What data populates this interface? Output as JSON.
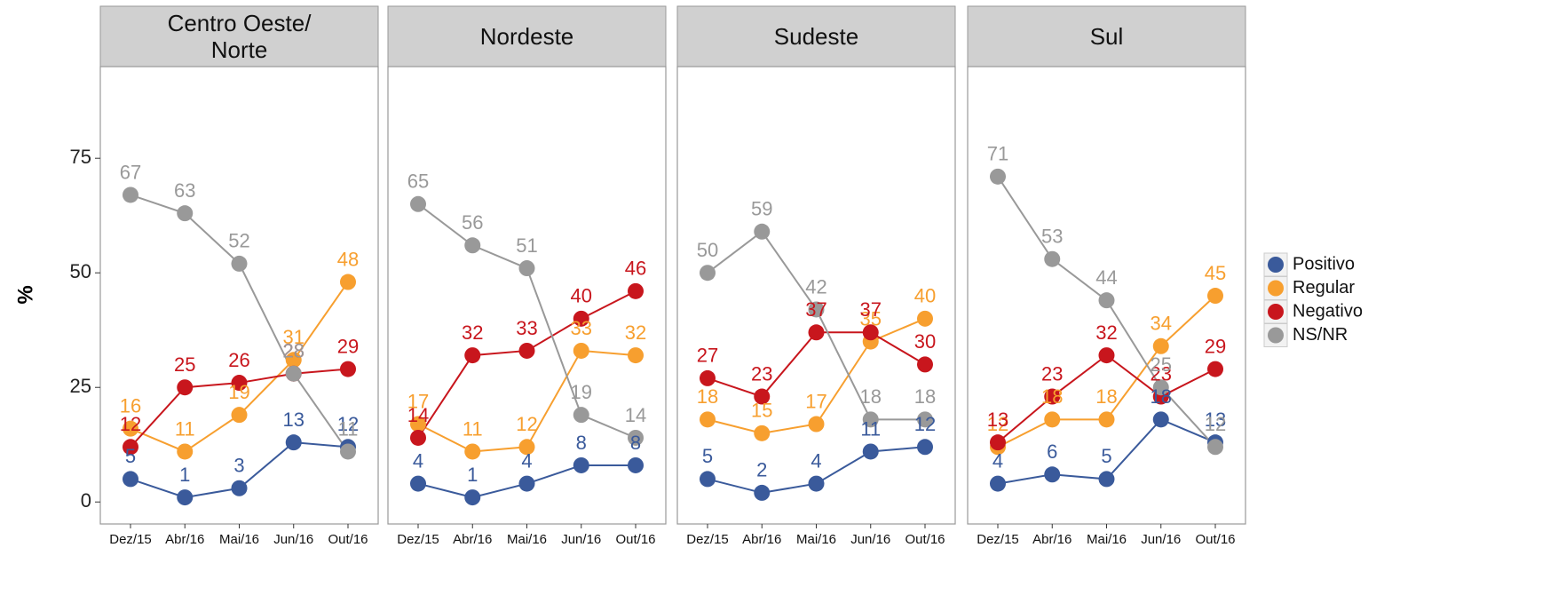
{
  "chart_data": [
    {
      "type": "line",
      "title": "Centro Oeste/\nNorte",
      "y_label": "%",
      "categories": [
        "Dez/15",
        "Abr/16",
        "Mai/16",
        "Jun/16",
        "Out/16"
      ],
      "ylim": [
        -4.8,
        95
      ],
      "yticks": [
        0,
        25,
        50,
        75
      ],
      "series": [
        {
          "name": "Positivo",
          "color": "#3a5a9b",
          "values": [
            5,
            1,
            3,
            13,
            12
          ]
        },
        {
          "name": "Regular",
          "color": "#f79f2f",
          "values": [
            16,
            11,
            19,
            31,
            48
          ]
        },
        {
          "name": "Negativo",
          "color": "#c8161d",
          "values": [
            12,
            25,
            26,
            28,
            29
          ]
        },
        {
          "name": "NS/NR",
          "color": "#999999",
          "values": [
            67,
            63,
            52,
            28,
            11
          ]
        }
      ]
    },
    {
      "type": "line",
      "title": "Nordeste",
      "categories": [
        "Dez/15",
        "Abr/16",
        "Mai/16",
        "Jun/16",
        "Out/16"
      ],
      "ylim": [
        -4.8,
        95
      ],
      "yticks": [
        0,
        25,
        50,
        75
      ],
      "series": [
        {
          "name": "Positivo",
          "color": "#3a5a9b",
          "values": [
            4,
            1,
            4,
            8,
            8
          ]
        },
        {
          "name": "Regular",
          "color": "#f79f2f",
          "values": [
            17,
            11,
            12,
            33,
            32
          ]
        },
        {
          "name": "Negativo",
          "color": "#c8161d",
          "values": [
            14,
            32,
            33,
            40,
            46
          ]
        },
        {
          "name": "NS/NR",
          "color": "#999999",
          "values": [
            65,
            56,
            51,
            19,
            14
          ]
        }
      ]
    },
    {
      "type": "line",
      "title": "Sudeste",
      "categories": [
        "Dez/15",
        "Abr/16",
        "Mai/16",
        "Jun/16",
        "Out/16"
      ],
      "ylim": [
        -4.8,
        95
      ],
      "yticks": [
        0,
        25,
        50,
        75
      ],
      "series": [
        {
          "name": "Positivo",
          "color": "#3a5a9b",
          "values": [
            5,
            2,
            4,
            11,
            12
          ]
        },
        {
          "name": "Regular",
          "color": "#f79f2f",
          "values": [
            18,
            15,
            17,
            35,
            40
          ]
        },
        {
          "name": "Negativo",
          "color": "#c8161d",
          "values": [
            27,
            23,
            37,
            37,
            30
          ]
        },
        {
          "name": "NS/NR",
          "color": "#999999",
          "values": [
            50,
            59,
            42,
            18,
            18
          ]
        }
      ]
    },
    {
      "type": "line",
      "title": "Sul",
      "categories": [
        "Dez/15",
        "Abr/16",
        "Mai/16",
        "Jun/16",
        "Out/16"
      ],
      "ylim": [
        -4.8,
        95
      ],
      "yticks": [
        0,
        25,
        50,
        75
      ],
      "series": [
        {
          "name": "Positivo",
          "color": "#3a5a9b",
          "values": [
            4,
            6,
            5,
            18,
            13
          ]
        },
        {
          "name": "Regular",
          "color": "#f79f2f",
          "values": [
            12,
            18,
            18,
            34,
            45
          ]
        },
        {
          "name": "Negativo",
          "color": "#c8161d",
          "values": [
            13,
            23,
            32,
            23,
            29
          ]
        },
        {
          "name": "NS/NR",
          "color": "#999999",
          "values": [
            71,
            53,
            44,
            25,
            12
          ]
        }
      ]
    }
  ]
}
